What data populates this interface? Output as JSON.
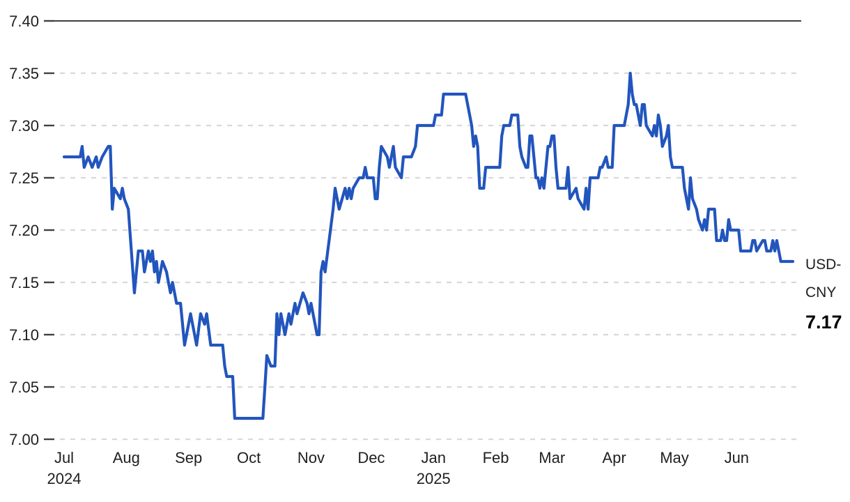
{
  "chart_data": {
    "type": "line",
    "title": "",
    "grid": "horizontal-dashed",
    "legend_position": "right-of-line-end",
    "colors": {
      "line": "#2255bd",
      "grid_dashed": "#d9d9d9",
      "grid_top_solid": "#404040",
      "tick": "#404040",
      "text": "#1f1f1f",
      "background": "#ffffff"
    },
    "right_label": {
      "line1": "USD-",
      "line2": "CNY",
      "value": "7.17"
    },
    "ylim": [
      7.0,
      7.4
    ],
    "x_range": [
      "2024-07-01",
      "2025-06-29"
    ],
    "y_ticks": [
      {
        "label": "7.40",
        "value": 7.4
      },
      {
        "label": "7.35",
        "value": 7.35
      },
      {
        "label": "7.30",
        "value": 7.3
      },
      {
        "label": "7.25",
        "value": 7.25
      },
      {
        "label": "7.20",
        "value": 7.2
      },
      {
        "label": "7.15",
        "value": 7.15
      },
      {
        "label": "7.10",
        "value": 7.1
      },
      {
        "label": "7.05",
        "value": 7.05
      },
      {
        "label": "7.00",
        "value": 7.0
      }
    ],
    "x_ticks": [
      {
        "label": "Jul",
        "sub": "2024",
        "date": "2024-07-01"
      },
      {
        "label": "Aug",
        "date": "2024-08-01"
      },
      {
        "label": "Sep",
        "date": "2024-09-01"
      },
      {
        "label": "Oct",
        "date": "2024-10-01"
      },
      {
        "label": "Nov",
        "date": "2024-11-01"
      },
      {
        "label": "Dec",
        "date": "2024-12-01"
      },
      {
        "label": "Jan",
        "sub": "2025",
        "date": "2025-01-01"
      },
      {
        "label": "Feb",
        "date": "2025-02-01"
      },
      {
        "label": "Mar",
        "date": "2025-03-01"
      },
      {
        "label": "Apr",
        "date": "2025-04-01"
      },
      {
        "label": "May",
        "date": "2025-05-01"
      },
      {
        "label": "Jun",
        "date": "2025-06-01"
      }
    ],
    "series": [
      {
        "name": "USD-CNY",
        "last_value": 7.17,
        "points": [
          [
            "2024-07-01",
            7.27
          ],
          [
            "2024-07-09",
            7.27
          ],
          [
            "2024-07-10",
            7.28
          ],
          [
            "2024-07-11",
            7.26
          ],
          [
            "2024-07-13",
            7.27
          ],
          [
            "2024-07-15",
            7.26
          ],
          [
            "2024-07-17",
            7.27
          ],
          [
            "2024-07-18",
            7.26
          ],
          [
            "2024-07-20",
            7.27
          ],
          [
            "2024-07-23",
            7.28
          ],
          [
            "2024-07-24",
            7.28
          ],
          [
            "2024-07-25",
            7.22
          ],
          [
            "2024-07-26",
            7.24
          ],
          [
            "2024-07-29",
            7.23
          ],
          [
            "2024-07-30",
            7.24
          ],
          [
            "2024-07-31",
            7.23
          ],
          [
            "2024-08-02",
            7.22
          ],
          [
            "2024-08-05",
            7.14
          ],
          [
            "2024-08-07",
            7.18
          ],
          [
            "2024-08-09",
            7.18
          ],
          [
            "2024-08-10",
            7.16
          ],
          [
            "2024-08-12",
            7.18
          ],
          [
            "2024-08-13",
            7.17
          ],
          [
            "2024-08-14",
            7.18
          ],
          [
            "2024-08-15",
            7.16
          ],
          [
            "2024-08-16",
            7.17
          ],
          [
            "2024-08-17",
            7.15
          ],
          [
            "2024-08-19",
            7.17
          ],
          [
            "2024-08-21",
            7.16
          ],
          [
            "2024-08-22",
            7.15
          ],
          [
            "2024-08-23",
            7.14
          ],
          [
            "2024-08-24",
            7.15
          ],
          [
            "2024-08-26",
            7.13
          ],
          [
            "2024-08-28",
            7.13
          ],
          [
            "2024-08-30",
            7.09
          ],
          [
            "2024-09-02",
            7.12
          ],
          [
            "2024-09-04",
            7.1
          ],
          [
            "2024-09-05",
            7.09
          ],
          [
            "2024-09-07",
            7.12
          ],
          [
            "2024-09-09",
            7.11
          ],
          [
            "2024-09-10",
            7.12
          ],
          [
            "2024-09-12",
            7.09
          ],
          [
            "2024-09-18",
            7.09
          ],
          [
            "2024-09-19",
            7.07
          ],
          [
            "2024-09-20",
            7.06
          ],
          [
            "2024-09-23",
            7.06
          ],
          [
            "2024-09-24",
            7.02
          ],
          [
            "2024-10-08",
            7.02
          ],
          [
            "2024-10-09",
            7.05
          ],
          [
            "2024-10-10",
            7.08
          ],
          [
            "2024-10-12",
            7.07
          ],
          [
            "2024-10-14",
            7.07
          ],
          [
            "2024-10-15",
            7.12
          ],
          [
            "2024-10-16",
            7.1
          ],
          [
            "2024-10-17",
            7.12
          ],
          [
            "2024-10-18",
            7.11
          ],
          [
            "2024-10-19",
            7.1
          ],
          [
            "2024-10-21",
            7.12
          ],
          [
            "2024-10-22",
            7.11
          ],
          [
            "2024-10-24",
            7.13
          ],
          [
            "2024-10-25",
            7.12
          ],
          [
            "2024-10-28",
            7.14
          ],
          [
            "2024-10-30",
            7.13
          ],
          [
            "2024-10-31",
            7.12
          ],
          [
            "2024-11-01",
            7.13
          ],
          [
            "2024-11-04",
            7.1
          ],
          [
            "2024-11-05",
            7.1
          ],
          [
            "2024-11-06",
            7.16
          ],
          [
            "2024-11-07",
            7.17
          ],
          [
            "2024-11-08",
            7.16
          ],
          [
            "2024-11-12",
            7.22
          ],
          [
            "2024-11-13",
            7.24
          ],
          [
            "2024-11-14",
            7.23
          ],
          [
            "2024-11-15",
            7.22
          ],
          [
            "2024-11-18",
            7.24
          ],
          [
            "2024-11-19",
            7.23
          ],
          [
            "2024-11-20",
            7.24
          ],
          [
            "2024-11-21",
            7.23
          ],
          [
            "2024-11-22",
            7.24
          ],
          [
            "2024-11-25",
            7.25
          ],
          [
            "2024-11-27",
            7.25
          ],
          [
            "2024-11-28",
            7.26
          ],
          [
            "2024-11-29",
            7.25
          ],
          [
            "2024-12-02",
            7.25
          ],
          [
            "2024-12-03",
            7.23
          ],
          [
            "2024-12-04",
            7.23
          ],
          [
            "2024-12-05",
            7.26
          ],
          [
            "2024-12-06",
            7.28
          ],
          [
            "2024-12-09",
            7.27
          ],
          [
            "2024-12-10",
            7.26
          ],
          [
            "2024-12-12",
            7.28
          ],
          [
            "2024-12-13",
            7.26
          ],
          [
            "2024-12-16",
            7.25
          ],
          [
            "2024-12-17",
            7.27
          ],
          [
            "2024-12-19",
            7.27
          ],
          [
            "2024-12-21",
            7.27
          ],
          [
            "2024-12-23",
            7.28
          ],
          [
            "2024-12-24",
            7.3
          ],
          [
            "2025-01-01",
            7.3
          ],
          [
            "2025-01-02",
            7.31
          ],
          [
            "2025-01-05",
            7.31
          ],
          [
            "2025-01-06",
            7.33
          ],
          [
            "2025-01-17",
            7.33
          ],
          [
            "2025-01-20",
            7.3
          ],
          [
            "2025-01-21",
            7.28
          ],
          [
            "2025-01-22",
            7.29
          ],
          [
            "2025-01-23",
            7.28
          ],
          [
            "2025-01-24",
            7.24
          ],
          [
            "2025-01-26",
            7.24
          ],
          [
            "2025-01-27",
            7.26
          ],
          [
            "2025-02-03",
            7.26
          ],
          [
            "2025-02-04",
            7.29
          ],
          [
            "2025-02-05",
            7.3
          ],
          [
            "2025-02-08",
            7.3
          ],
          [
            "2025-02-09",
            7.31
          ],
          [
            "2025-02-12",
            7.31
          ],
          [
            "2025-02-13",
            7.28
          ],
          [
            "2025-02-14",
            7.27
          ],
          [
            "2025-02-16",
            7.26
          ],
          [
            "2025-02-17",
            7.26
          ],
          [
            "2025-02-18",
            7.29
          ],
          [
            "2025-02-19",
            7.29
          ],
          [
            "2025-02-21",
            7.25
          ],
          [
            "2025-02-22",
            7.25
          ],
          [
            "2025-02-23",
            7.24
          ],
          [
            "2025-02-24",
            7.25
          ],
          [
            "2025-02-25",
            7.24
          ],
          [
            "2025-02-27",
            7.28
          ],
          [
            "2025-02-28",
            7.28
          ],
          [
            "2025-03-01",
            7.29
          ],
          [
            "2025-03-02",
            7.29
          ],
          [
            "2025-03-03",
            7.26
          ],
          [
            "2025-03-04",
            7.24
          ],
          [
            "2025-03-08",
            7.24
          ],
          [
            "2025-03-09",
            7.26
          ],
          [
            "2025-03-10",
            7.23
          ],
          [
            "2025-03-13",
            7.24
          ],
          [
            "2025-03-14",
            7.23
          ],
          [
            "2025-03-17",
            7.22
          ],
          [
            "2025-03-18",
            7.24
          ],
          [
            "2025-03-19",
            7.22
          ],
          [
            "2025-03-20",
            7.25
          ],
          [
            "2025-03-24",
            7.25
          ],
          [
            "2025-03-25",
            7.26
          ],
          [
            "2025-03-26",
            7.26
          ],
          [
            "2025-03-28",
            7.27
          ],
          [
            "2025-03-29",
            7.26
          ],
          [
            "2025-03-31",
            7.26
          ],
          [
            "2025-04-01",
            7.3
          ],
          [
            "2025-04-06",
            7.3
          ],
          [
            "2025-04-08",
            7.32
          ],
          [
            "2025-04-09",
            7.35
          ],
          [
            "2025-04-10",
            7.33
          ],
          [
            "2025-04-11",
            7.32
          ],
          [
            "2025-04-12",
            7.32
          ],
          [
            "2025-04-14",
            7.3
          ],
          [
            "2025-04-15",
            7.32
          ],
          [
            "2025-04-16",
            7.32
          ],
          [
            "2025-04-17",
            7.3
          ],
          [
            "2025-04-20",
            7.29
          ],
          [
            "2025-04-21",
            7.3
          ],
          [
            "2025-04-22",
            7.29
          ],
          [
            "2025-04-23",
            7.31
          ],
          [
            "2025-04-24",
            7.3
          ],
          [
            "2025-04-25",
            7.28
          ],
          [
            "2025-04-27",
            7.29
          ],
          [
            "2025-04-28",
            7.3
          ],
          [
            "2025-04-29",
            7.27
          ],
          [
            "2025-04-30",
            7.26
          ],
          [
            "2025-05-05",
            7.26
          ],
          [
            "2025-05-06",
            7.24
          ],
          [
            "2025-05-08",
            7.22
          ],
          [
            "2025-05-09",
            7.25
          ],
          [
            "2025-05-10",
            7.23
          ],
          [
            "2025-05-12",
            7.22
          ],
          [
            "2025-05-13",
            7.21
          ],
          [
            "2025-05-15",
            7.2
          ],
          [
            "2025-05-16",
            7.21
          ],
          [
            "2025-05-17",
            7.2
          ],
          [
            "2025-05-18",
            7.22
          ],
          [
            "2025-05-21",
            7.22
          ],
          [
            "2025-05-22",
            7.19
          ],
          [
            "2025-05-24",
            7.19
          ],
          [
            "2025-05-25",
            7.2
          ],
          [
            "2025-05-26",
            7.19
          ],
          [
            "2025-05-27",
            7.19
          ],
          [
            "2025-05-28",
            7.21
          ],
          [
            "2025-05-29",
            7.2
          ],
          [
            "2025-06-02",
            7.2
          ],
          [
            "2025-06-03",
            7.18
          ],
          [
            "2025-06-08",
            7.18
          ],
          [
            "2025-06-09",
            7.19
          ],
          [
            "2025-06-10",
            7.19
          ],
          [
            "2025-06-11",
            7.18
          ],
          [
            "2025-06-14",
            7.19
          ],
          [
            "2025-06-15",
            7.19
          ],
          [
            "2025-06-16",
            7.18
          ],
          [
            "2025-06-18",
            7.18
          ],
          [
            "2025-06-19",
            7.19
          ],
          [
            "2025-06-20",
            7.18
          ],
          [
            "2025-06-21",
            7.19
          ],
          [
            "2025-06-22",
            7.18
          ],
          [
            "2025-06-23",
            7.17
          ],
          [
            "2025-06-29",
            7.17
          ]
        ]
      }
    ]
  }
}
